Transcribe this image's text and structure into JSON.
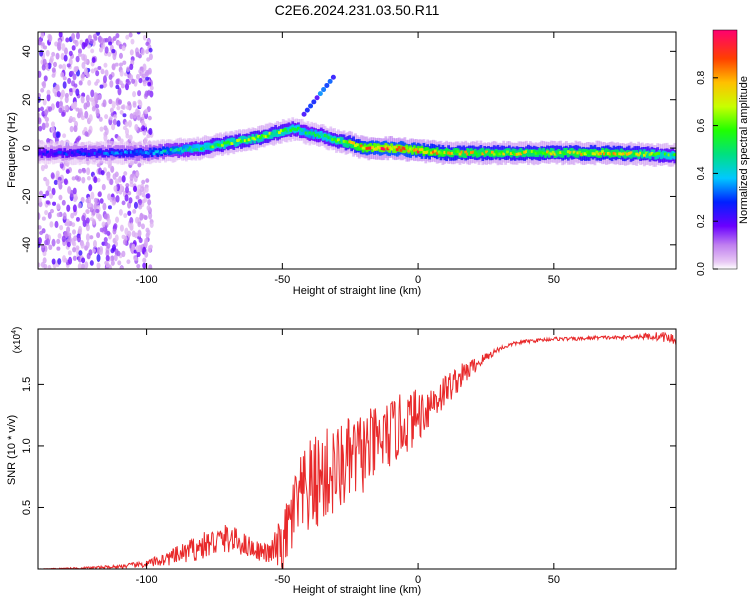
{
  "title": "C2E6.2024.231.03.50.R11",
  "colors": {
    "snr_line": "#e8292a",
    "axis": "#000000",
    "background": "#ffffff"
  },
  "chart_data": [
    {
      "type": "heatmap",
      "xlabel": "Height of straight line (km)",
      "ylabel": "Frequency (Hz)",
      "xlim": [
        -140,
        95
      ],
      "ylim": [
        -50,
        48
      ],
      "x_ticks": [
        -100,
        -50,
        0,
        50
      ],
      "y_ticks": [
        -40,
        -20,
        0,
        20,
        40
      ],
      "colorbar": {
        "label": "Normalized spectral amplitude",
        "range": [
          0,
          1
        ],
        "ticks": [
          0.0,
          0.2,
          0.4,
          0.6,
          0.8
        ]
      },
      "ridge": {
        "x": [
          -140,
          -120,
          -100,
          -90,
          -80,
          -70,
          -60,
          -50,
          -45,
          -40,
          -35,
          -30,
          -25,
          -20,
          -10,
          0,
          10,
          30,
          50,
          70,
          95
        ],
        "frequency": [
          -2,
          -2,
          -2,
          -1,
          0,
          2,
          4,
          7,
          8,
          6,
          5,
          3,
          2,
          0,
          0,
          -1,
          -2,
          -2,
          -2,
          -2,
          -3
        ],
        "amplitude": [
          0.25,
          0.3,
          0.35,
          0.45,
          0.55,
          0.6,
          0.62,
          0.6,
          0.55,
          0.5,
          0.55,
          0.6,
          0.7,
          0.85,
          0.9,
          0.85,
          0.75,
          0.7,
          0.7,
          0.75,
          0.55
        ]
      }
    },
    {
      "type": "line",
      "xlabel": "Height of straight line (km)",
      "ylabel": "SNR (10 * v/v)",
      "y_multiplier": "(x10",
      "y_multiplier_exp": "4",
      "y_multiplier_close": ")",
      "xlim": [
        -140,
        95
      ],
      "ylim": [
        0,
        1.95
      ],
      "x_ticks": [
        -100,
        -50,
        0,
        50
      ],
      "y_ticks": [
        0.5,
        1.0,
        1.5
      ],
      "series": [
        {
          "x": [
            -140,
            -130,
            -120,
            -110,
            -100,
            -95,
            -90,
            -85,
            -80,
            -75,
            -70,
            -65,
            -60,
            -55,
            -50,
            -45,
            -40,
            -35,
            -30,
            -25,
            -20,
            -15,
            -10,
            -5,
            0,
            5,
            10,
            15,
            20,
            25,
            30,
            35,
            40,
            45,
            50,
            55,
            60,
            65,
            70,
            75,
            80,
            85,
            90,
            95
          ],
          "values": [
            0.0,
            0.005,
            0.01,
            0.02,
            0.04,
            0.07,
            0.1,
            0.14,
            0.18,
            0.22,
            0.25,
            0.21,
            0.16,
            0.12,
            0.2,
            0.5,
            0.65,
            0.75,
            0.8,
            0.88,
            0.95,
            1.02,
            1.1,
            1.18,
            1.25,
            1.35,
            1.45,
            1.55,
            1.64,
            1.72,
            1.79,
            1.83,
            1.85,
            1.86,
            1.87,
            1.87,
            1.87,
            1.88,
            1.88,
            1.88,
            1.89,
            1.89,
            1.89,
            1.86
          ],
          "noise": [
            0.0,
            0.005,
            0.01,
            0.015,
            0.03,
            0.05,
            0.07,
            0.09,
            0.11,
            0.12,
            0.12,
            0.1,
            0.08,
            0.08,
            0.25,
            0.35,
            0.4,
            0.4,
            0.38,
            0.36,
            0.34,
            0.3,
            0.28,
            0.26,
            0.22,
            0.18,
            0.14,
            0.11,
            0.07,
            0.04,
            0.02,
            0.015,
            0.015,
            0.015,
            0.015,
            0.015,
            0.015,
            0.015,
            0.015,
            0.015,
            0.02,
            0.03,
            0.04,
            0.05
          ]
        }
      ]
    }
  ]
}
